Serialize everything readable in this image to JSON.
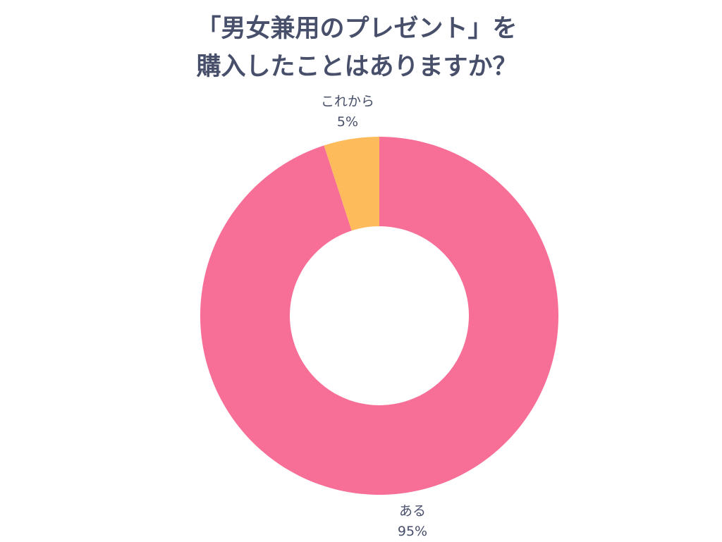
{
  "chart_data": {
    "type": "pie",
    "style": "donut",
    "title_lines": [
      "「男女兼用のプレゼント」を",
      "購入したことはありますか？"
    ],
    "slices": [
      {
        "label": "ある",
        "value": 95,
        "value_text": "95%",
        "color": "#f76e97"
      },
      {
        "label": "これから",
        "value": 5,
        "value_text": "5%",
        "color": "#fdbb5c"
      }
    ],
    "start": "top",
    "direction": "clockwise",
    "legend": "none"
  }
}
